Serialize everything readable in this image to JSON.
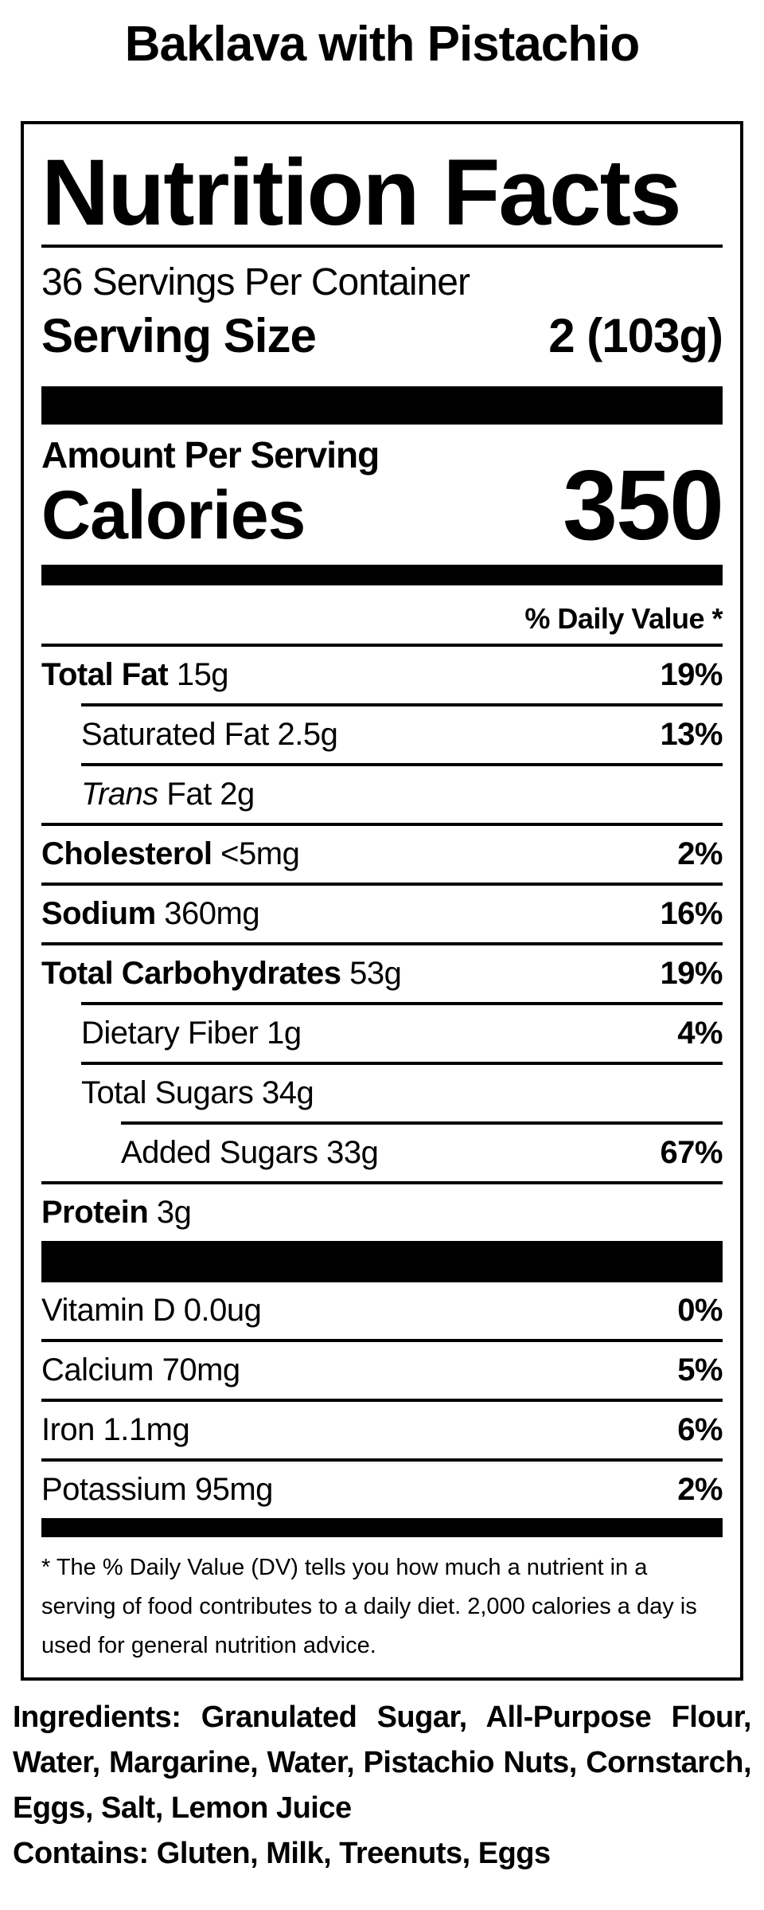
{
  "colors": {
    "text": "#000000",
    "background": "#ffffff"
  },
  "product_title": "Baklava with Pistachio",
  "label": {
    "title": "Nutrition Facts",
    "servings_per_container": "36 Servings Per Container",
    "serving_size_label": "Serving Size",
    "serving_size_value": "2 (103g)",
    "amount_per_serving": "Amount Per Serving",
    "calories_label": "Calories",
    "calories_value": "350",
    "daily_value_header": "% Daily Value *",
    "rows": [
      {
        "bold": "Total Fat",
        "italic": "",
        "rest": "",
        "amount": "15g",
        "dv": "19%",
        "indent": 0
      },
      {
        "bold": "",
        "italic": "",
        "rest": "Saturated Fat",
        "amount": "2.5g",
        "dv": "13%",
        "indent": 1
      },
      {
        "bold": "",
        "italic": "Trans",
        "rest": "Fat",
        "amount": "2g",
        "dv": "",
        "indent": 1
      },
      {
        "bold": "Cholesterol",
        "italic": "",
        "rest": "",
        "amount": "<5mg",
        "dv": "2%",
        "indent": 0
      },
      {
        "bold": "Sodium",
        "italic": "",
        "rest": "",
        "amount": "360mg",
        "dv": "16%",
        "indent": 0
      },
      {
        "bold": "Total Carbohydrates",
        "italic": "",
        "rest": "",
        "amount": "53g",
        "dv": "19%",
        "indent": 0
      },
      {
        "bold": "",
        "italic": "",
        "rest": "Dietary Fiber",
        "amount": "1g",
        "dv": "4%",
        "indent": 1
      },
      {
        "bold": "",
        "italic": "",
        "rest": "Total Sugars",
        "amount": "34g",
        "dv": "",
        "indent": 1
      },
      {
        "bold": "",
        "italic": "",
        "rest": "Added Sugars",
        "amount": "33g",
        "dv": "67%",
        "indent": 2
      },
      {
        "bold": "Protein",
        "italic": "",
        "rest": "",
        "amount": "3g",
        "dv": "",
        "indent": 0
      }
    ],
    "vitamins": [
      {
        "bold": "",
        "italic": "",
        "rest": "Vitamin D",
        "amount": "0.0ug",
        "dv": "0%",
        "indent": 0
      },
      {
        "bold": "",
        "italic": "",
        "rest": "Calcium",
        "amount": "70mg",
        "dv": "5%",
        "indent": 0
      },
      {
        "bold": "",
        "italic": "",
        "rest": "Iron",
        "amount": "1.1mg",
        "dv": "6%",
        "indent": 0
      },
      {
        "bold": "",
        "italic": "",
        "rest": "Potassium",
        "amount": "95mg",
        "dv": "2%",
        "indent": 0
      }
    ],
    "footnote": "* The % Daily Value (DV) tells you how much a nutrient in a serving of food contributes to a daily diet. 2,000 calories a day is used for general nutrition advice."
  },
  "ingredients": {
    "label": "Ingredients:",
    "text": "Granulated Sugar, All-Purpose Flour, Water, Margarine, Water, Pistachio Nuts, Cornstarch, Eggs, Salt, Lemon Juice"
  },
  "contains": {
    "label": "Contains:",
    "text": "Gluten, Milk, Treenuts, Eggs"
  }
}
